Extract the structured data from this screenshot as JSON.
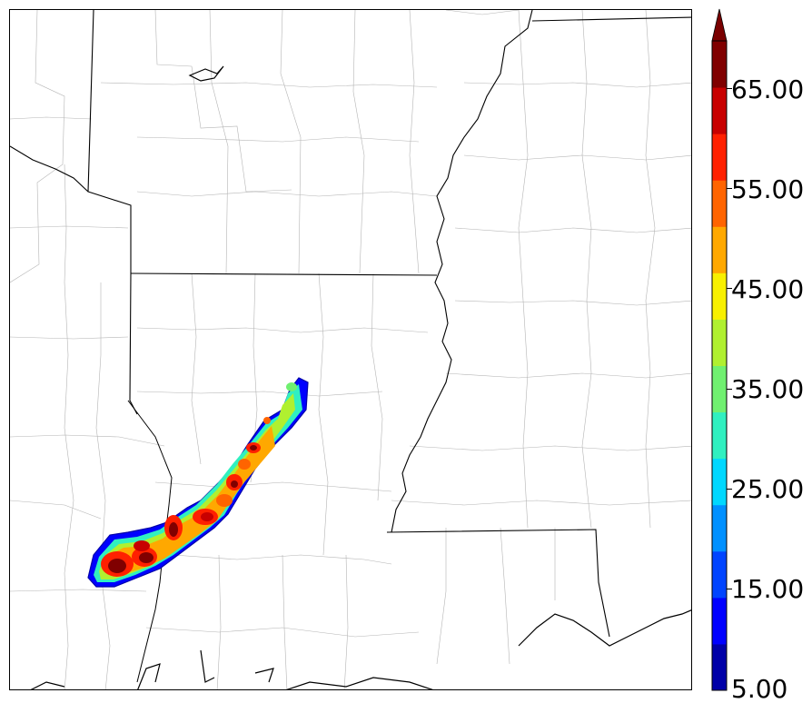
{
  "colorbar": {
    "labels": [
      "65.00",
      "55.00",
      "45.00",
      "35.00",
      "25.00",
      "15.00",
      "5.00"
    ],
    "levels": [
      5,
      10,
      15,
      20,
      25,
      30,
      35,
      40,
      45,
      50,
      55,
      60,
      65,
      70
    ],
    "colors": [
      "#0000a8",
      "#0000ff",
      "#0044ff",
      "#0090ff",
      "#00d8ff",
      "#30f0c0",
      "#70f070",
      "#b0f030",
      "#f8f000",
      "#ffa800",
      "#ff6400",
      "#ff2000",
      "#c80000",
      "#800000"
    ],
    "extend_max_color": "#7a0000"
  }
}
